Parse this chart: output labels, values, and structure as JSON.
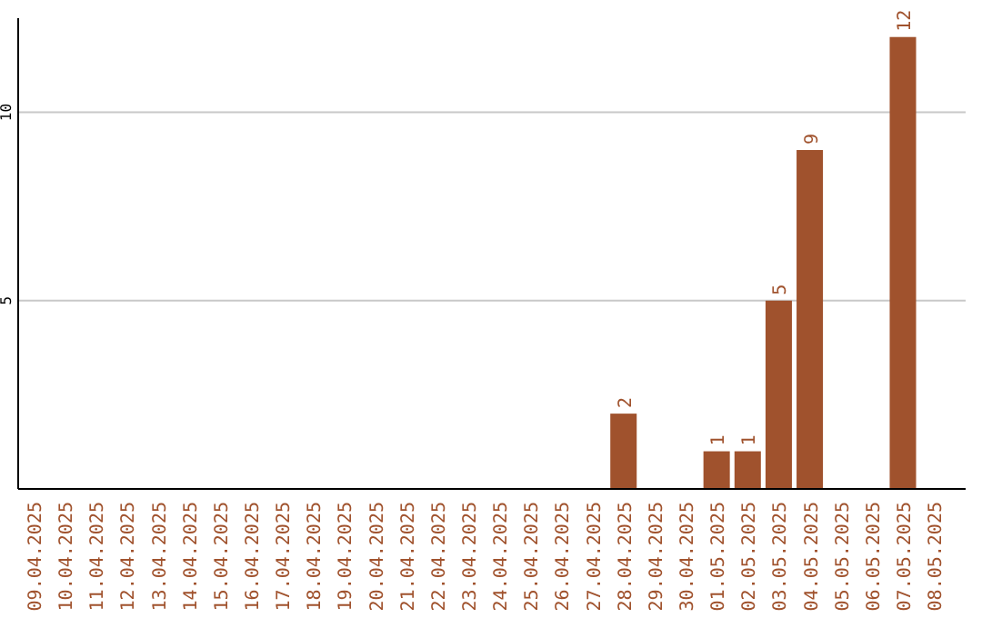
{
  "chart_data": {
    "type": "bar",
    "categories": [
      "09.04.2025",
      "10.04.2025",
      "11.04.2025",
      "12.04.2025",
      "13.04.2025",
      "14.04.2025",
      "15.04.2025",
      "16.04.2025",
      "17.04.2025",
      "18.04.2025",
      "19.04.2025",
      "20.04.2025",
      "21.04.2025",
      "22.04.2025",
      "23.04.2025",
      "24.04.2025",
      "25.04.2025",
      "26.04.2025",
      "27.04.2025",
      "28.04.2025",
      "29.04.2025",
      "30.04.2025",
      "01.05.2025",
      "02.05.2025",
      "03.05.2025",
      "04.05.2025",
      "05.05.2025",
      "06.05.2025",
      "07.05.2025",
      "08.05.2025"
    ],
    "values": [
      0,
      0,
      0,
      0,
      0,
      0,
      0,
      0,
      0,
      0,
      0,
      0,
      0,
      0,
      0,
      0,
      0,
      0,
      0,
      2,
      0,
      0,
      1,
      1,
      5,
      9,
      0,
      0,
      12,
      0
    ],
    "value_labels": [
      null,
      null,
      null,
      null,
      null,
      null,
      null,
      null,
      null,
      null,
      null,
      null,
      null,
      null,
      null,
      null,
      null,
      null,
      null,
      "2",
      null,
      null,
      "1",
      "1",
      "5",
      "9",
      null,
      null,
      "12",
      null
    ],
    "color": "#a0522d",
    "ylim": [
      0,
      12.5
    ],
    "yticks": [
      5,
      10
    ],
    "grid": "y"
  }
}
